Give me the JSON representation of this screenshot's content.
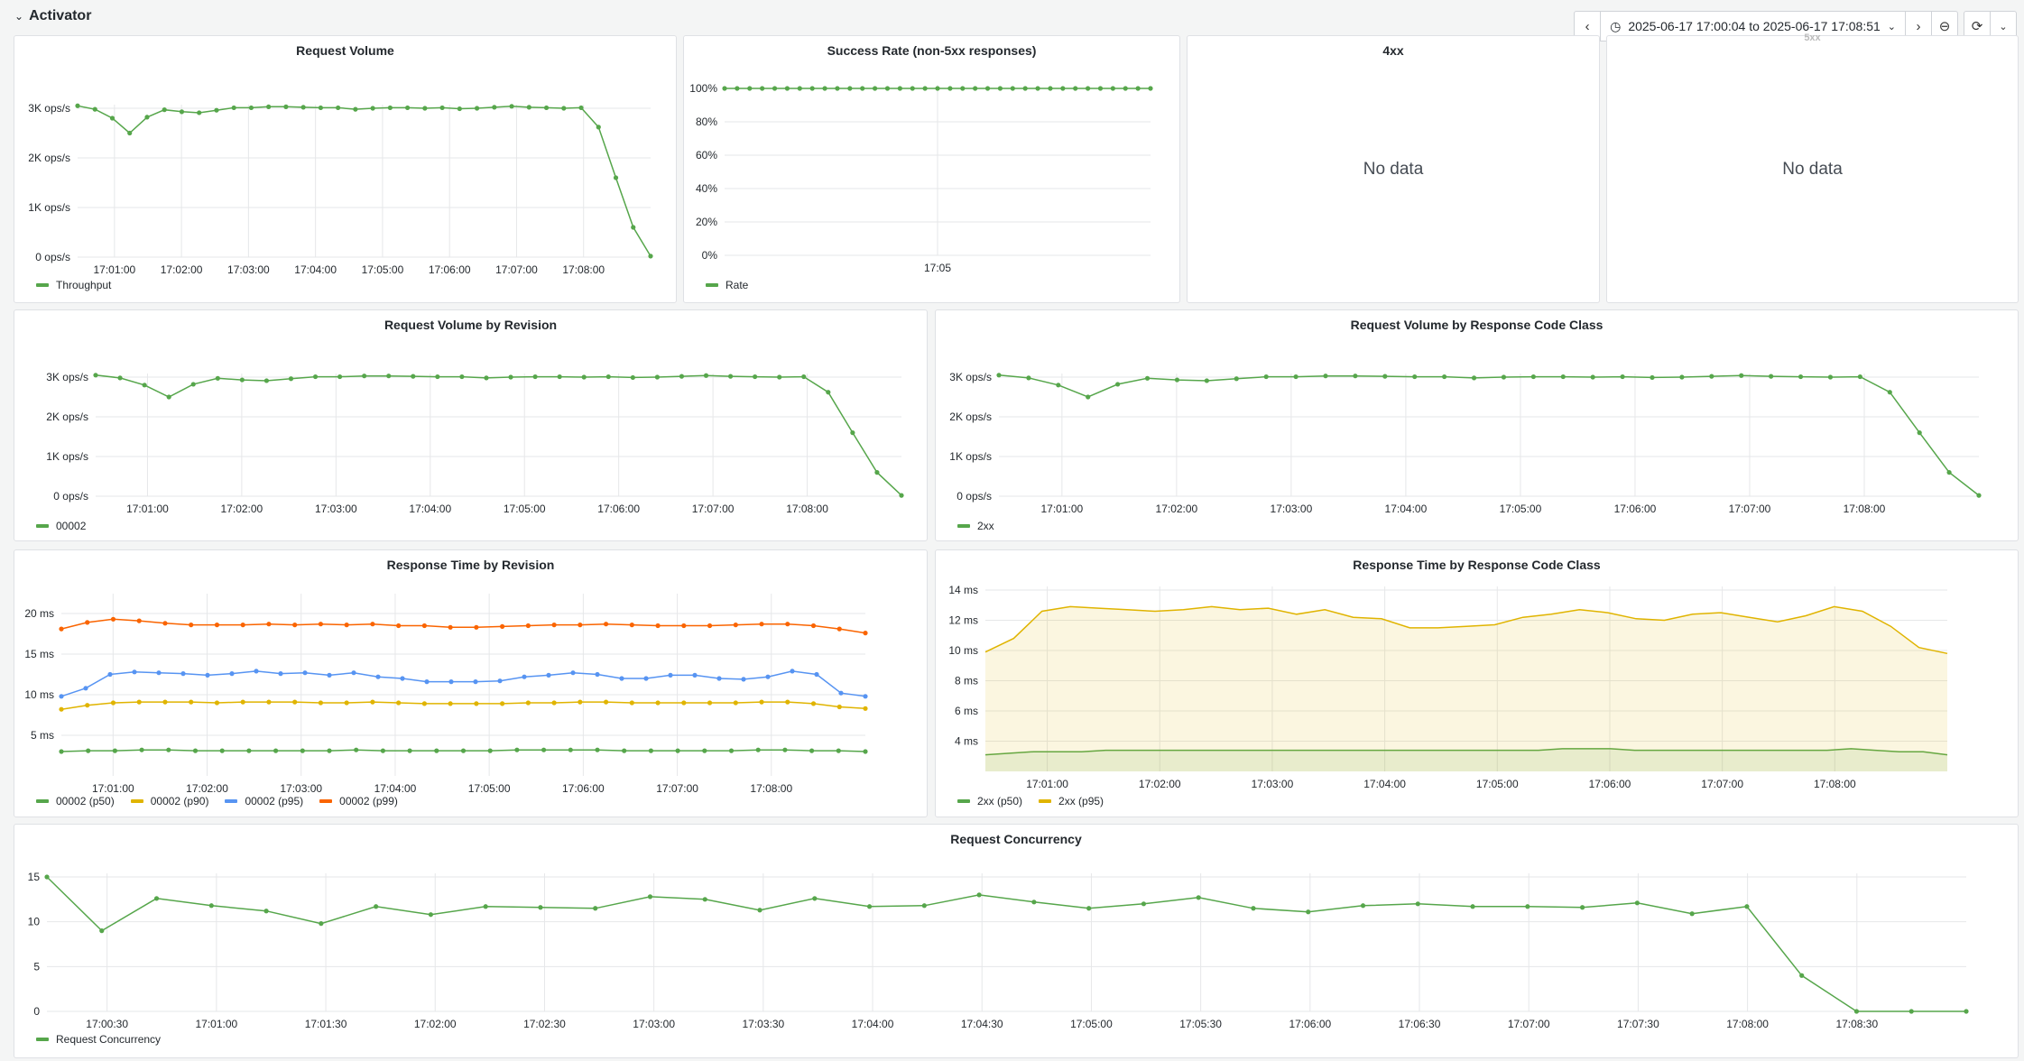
{
  "header": {
    "row_title": "Activator",
    "time_range": "2025-06-17 17:00:04 to 2025-06-17 17:08:51"
  },
  "colors": {
    "green": "#56a64b",
    "yellow": "#e0b400",
    "blue": "#5794f2",
    "orange": "#fa6400"
  },
  "panels": {
    "request_volume": {
      "title": "Request Volume",
      "legend": [
        "Throughput"
      ],
      "chart_data": {
        "type": "line",
        "yticks": [
          "3K ops/s",
          "2K ops/s",
          "1K ops/s",
          "0 ops/s"
        ],
        "ylim": [
          0,
          3000
        ],
        "xticks": [
          "17:01:00",
          "17:02:00",
          "17:03:00",
          "17:04:00",
          "17:05:00",
          "17:06:00",
          "17:07:00",
          "17:08:00"
        ],
        "series": [
          {
            "name": "Throughput",
            "values": [
              3050,
              2980,
              2800,
              2500,
              2820,
              2970,
              2930,
              2910,
              2960,
              3010,
              3010,
              3030,
              3030,
              3020,
              3010,
              3010,
              2980,
              3000,
              3010,
              3010,
              3000,
              3010,
              2990,
              3000,
              3020,
              3040,
              3020,
              3010,
              3000,
              3010,
              2620,
              1600,
              600,
              20
            ]
          }
        ]
      }
    },
    "success_rate": {
      "title": "Success Rate (non-5xx responses)",
      "legend": [
        "Rate"
      ],
      "chart_data": {
        "type": "line",
        "yticks": [
          "100%",
          "80%",
          "60%",
          "40%",
          "20%",
          "0%"
        ],
        "ylim": [
          0,
          100
        ],
        "xticks": [
          "17:05"
        ],
        "series": [
          {
            "name": "Rate",
            "values": [
              100,
              100,
              100,
              100,
              100,
              100,
              100,
              100,
              100,
              100,
              100,
              100,
              100,
              100,
              100,
              100,
              100,
              100,
              100,
              100,
              100,
              100,
              100,
              100,
              100,
              100,
              100,
              100,
              100,
              100,
              100,
              100,
              100,
              100,
              100
            ]
          }
        ]
      }
    },
    "4xx": {
      "title": "4xx",
      "no_data": "No data"
    },
    "5xx": {
      "title": "5xx",
      "no_data": "No data"
    },
    "volume_by_revision": {
      "title": "Request Volume by Revision",
      "legend": [
        "00002"
      ],
      "chart_data": {
        "type": "line",
        "yticks": [
          "3K ops/s",
          "2K ops/s",
          "1K ops/s",
          "0 ops/s"
        ],
        "ylim": [
          0,
          3000
        ],
        "xticks": [
          "17:01:00",
          "17:02:00",
          "17:03:00",
          "17:04:00",
          "17:05:00",
          "17:06:00",
          "17:07:00",
          "17:08:00"
        ],
        "series": [
          {
            "name": "00002",
            "values": [
              3050,
              2980,
              2800,
              2500,
              2820,
              2970,
              2930,
              2910,
              2960,
              3010,
              3010,
              3030,
              3030,
              3020,
              3010,
              3010,
              2980,
              3000,
              3010,
              3010,
              3000,
              3010,
              2990,
              3000,
              3020,
              3040,
              3020,
              3010,
              3000,
              3010,
              2620,
              1600,
              600,
              20
            ]
          }
        ]
      }
    },
    "volume_by_code": {
      "title": "Request Volume by Response Code Class",
      "legend": [
        "2xx"
      ],
      "chart_data": {
        "type": "line",
        "yticks": [
          "3K ops/s",
          "2K ops/s",
          "1K ops/s",
          "0 ops/s"
        ],
        "ylim": [
          0,
          3000
        ],
        "xticks": [
          "17:01:00",
          "17:02:00",
          "17:03:00",
          "17:04:00",
          "17:05:00",
          "17:06:00",
          "17:07:00",
          "17:08:00"
        ],
        "series": [
          {
            "name": "2xx",
            "values": [
              3050,
              2980,
              2800,
              2500,
              2820,
              2970,
              2930,
              2910,
              2960,
              3010,
              3010,
              3030,
              3030,
              3020,
              3010,
              3010,
              2980,
              3000,
              3010,
              3010,
              3000,
              3010,
              2990,
              3000,
              3020,
              3040,
              3020,
              3010,
              3000,
              3010,
              2620,
              1600,
              600,
              20
            ]
          }
        ]
      }
    },
    "response_by_revision": {
      "title": "Response Time by Revision",
      "legend": [
        "00002 (p50)",
        "00002 (p90)",
        "00002 (p95)",
        "00002 (p99)"
      ],
      "chart_data": {
        "type": "line",
        "yticks": [
          "20 ms",
          "15 ms",
          "10 ms",
          "5 ms"
        ],
        "ylim": [
          0,
          22
        ],
        "xticks": [
          "17:01:00",
          "17:02:00",
          "17:03:00",
          "17:04:00",
          "17:05:00",
          "17:06:00",
          "17:07:00",
          "17:08:00"
        ],
        "series": [
          {
            "name": "00002 (p50)",
            "values": [
              3.0,
              3.1,
              3.1,
              3.2,
              3.2,
              3.1,
              3.1,
              3.1,
              3.1,
              3.1,
              3.1,
              3.2,
              3.1,
              3.1,
              3.1,
              3.1,
              3.1,
              3.2,
              3.2,
              3.2,
              3.2,
              3.1,
              3.1,
              3.1,
              3.1,
              3.1,
              3.2,
              3.2,
              3.1,
              3.1,
              3.0
            ]
          },
          {
            "name": "00002 (p90)",
            "values": [
              8.2,
              8.7,
              9.0,
              9.1,
              9.1,
              9.1,
              9.0,
              9.1,
              9.1,
              9.1,
              9.0,
              9.0,
              9.1,
              9.0,
              8.9,
              8.9,
              8.9,
              8.9,
              9.0,
              9.0,
              9.1,
              9.1,
              9.0,
              9.0,
              9.0,
              9.0,
              9.0,
              9.1,
              9.1,
              8.9,
              8.5,
              8.3
            ]
          },
          {
            "name": "00002 (p95)",
            "values": [
              9.8,
              10.8,
              12.5,
              12.8,
              12.7,
              12.6,
              12.4,
              12.6,
              12.9,
              12.6,
              12.7,
              12.4,
              12.7,
              12.2,
              12.0,
              11.6,
              11.6,
              11.6,
              11.7,
              12.2,
              12.4,
              12.7,
              12.5,
              12.0,
              12.0,
              12.4,
              12.4,
              12.0,
              11.9,
              12.2,
              12.9,
              12.5,
              10.2,
              9.8
            ]
          },
          {
            "name": "00002 (p99)",
            "values": [
              18.1,
              18.9,
              19.3,
              19.1,
              18.8,
              18.6,
              18.6,
              18.6,
              18.7,
              18.6,
              18.7,
              18.6,
              18.7,
              18.5,
              18.5,
              18.3,
              18.3,
              18.4,
              18.5,
              18.6,
              18.6,
              18.7,
              18.6,
              18.5,
              18.5,
              18.5,
              18.6,
              18.7,
              18.7,
              18.5,
              18.1,
              17.6
            ]
          }
        ]
      }
    },
    "response_by_code": {
      "title": "Response Time by Response Code Class",
      "legend": [
        "2xx (p50)",
        "2xx (p95)"
      ],
      "chart_data": {
        "type": "area",
        "yticks": [
          "14 ms",
          "12 ms",
          "10 ms",
          "8 ms",
          "6 ms",
          "4 ms"
        ],
        "ylim": [
          2,
          14
        ],
        "xticks": [
          "17:01:00",
          "17:02:00",
          "17:03:00",
          "17:04:00",
          "17:05:00",
          "17:06:00",
          "17:07:00",
          "17:08:00"
        ],
        "series": [
          {
            "name": "2xx (p50)",
            "values": [
              3.1,
              3.2,
              3.3,
              3.3,
              3.3,
              3.4,
              3.4,
              3.4,
              3.4,
              3.4,
              3.4,
              3.4,
              3.4,
              3.4,
              3.4,
              3.4,
              3.4,
              3.4,
              3.4,
              3.4,
              3.4,
              3.4,
              3.4,
              3.4,
              3.5,
              3.5,
              3.5,
              3.4,
              3.4,
              3.4,
              3.4,
              3.4,
              3.4,
              3.4,
              3.4,
              3.4,
              3.5,
              3.4,
              3.3,
              3.3,
              3.1
            ]
          },
          {
            "name": "2xx (p95)",
            "values": [
              9.9,
              10.8,
              12.6,
              12.9,
              12.8,
              12.7,
              12.6,
              12.7,
              12.9,
              12.7,
              12.8,
              12.4,
              12.7,
              12.2,
              12.1,
              11.5,
              11.5,
              11.6,
              11.7,
              12.2,
              12.4,
              12.7,
              12.5,
              12.1,
              12.0,
              12.4,
              12.5,
              12.2,
              11.9,
              12.3,
              12.9,
              12.6,
              11.6,
              10.2,
              9.8
            ]
          }
        ]
      }
    },
    "concurrency": {
      "title": "Request Concurrency",
      "legend": [
        "Request Concurrency"
      ],
      "chart_data": {
        "type": "line",
        "yticks": [
          "15",
          "10",
          "5",
          "0"
        ],
        "ylim": [
          0,
          15
        ],
        "xticks": [
          "17:00:30",
          "17:01:00",
          "17:01:30",
          "17:02:00",
          "17:02:30",
          "17:03:00",
          "17:03:30",
          "17:04:00",
          "17:04:30",
          "17:05:00",
          "17:05:30",
          "17:06:00",
          "17:06:30",
          "17:07:00",
          "17:07:30",
          "17:08:00",
          "17:08:30"
        ],
        "series": [
          {
            "name": "Request Concurrency",
            "values": [
              15,
              9,
              12.6,
              11.8,
              11.2,
              9.8,
              11.7,
              10.8,
              11.7,
              11.6,
              11.5,
              12.8,
              12.5,
              11.3,
              12.6,
              11.7,
              11.8,
              13.0,
              12.2,
              11.5,
              12.0,
              12.7,
              11.5,
              11.1,
              11.8,
              12.0,
              11.7,
              11.7,
              11.6,
              12.1,
              10.9,
              11.7,
              4.0,
              0,
              0,
              0
            ]
          }
        ]
      }
    }
  }
}
